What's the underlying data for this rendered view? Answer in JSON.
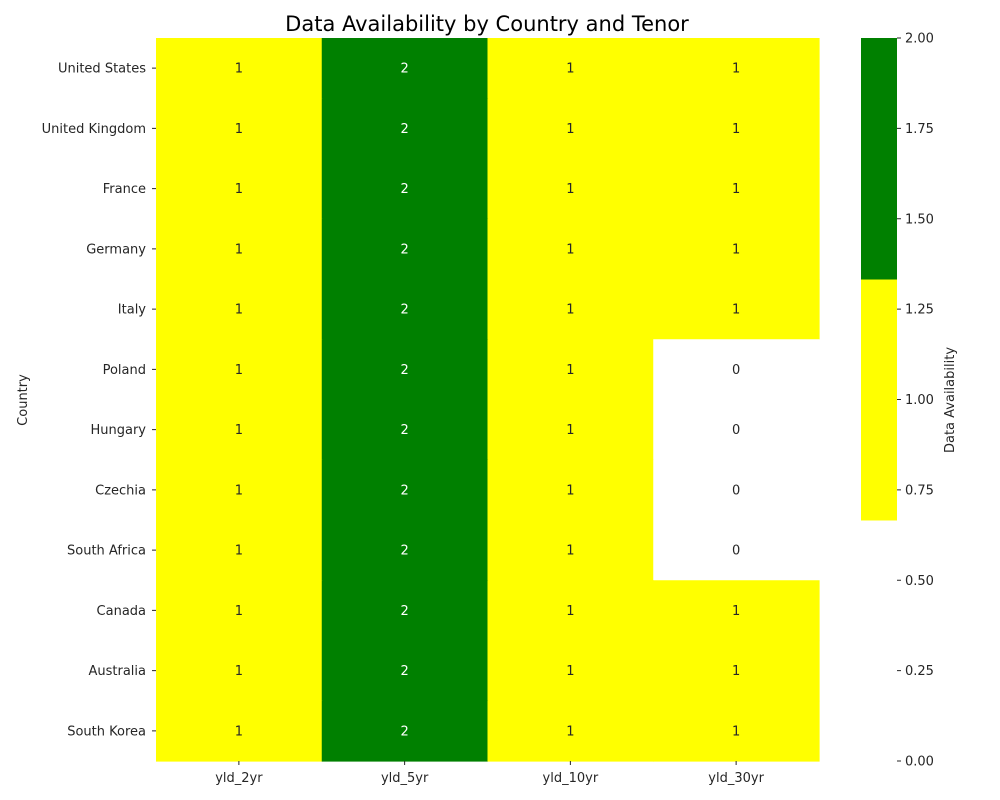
{
  "chart_data": {
    "type": "heatmap",
    "title": "Data Availability by Country and Tenor",
    "ylabel": "Country",
    "xlabel": "",
    "x_categories": [
      "yld_2yr",
      "yld_5yr",
      "yld_10yr",
      "yld_30yr"
    ],
    "y_categories": [
      "United States",
      "United Kingdom",
      "France",
      "Germany",
      "Italy",
      "Poland",
      "Hungary",
      "Czechia",
      "South Africa",
      "Canada",
      "Australia",
      "South Korea"
    ],
    "values": [
      [
        1,
        2,
        1,
        1
      ],
      [
        1,
        2,
        1,
        1
      ],
      [
        1,
        2,
        1,
        1
      ],
      [
        1,
        2,
        1,
        1
      ],
      [
        1,
        2,
        1,
        1
      ],
      [
        1,
        2,
        1,
        0
      ],
      [
        1,
        2,
        1,
        0
      ],
      [
        1,
        2,
        1,
        0
      ],
      [
        1,
        2,
        1,
        0
      ],
      [
        1,
        2,
        1,
        1
      ],
      [
        1,
        2,
        1,
        1
      ],
      [
        1,
        2,
        1,
        1
      ]
    ],
    "colormap": {
      "0": "#ffffff",
      "1": "#ffff00",
      "2": "#008000"
    },
    "annotation_colors": {
      "0": "#262626",
      "1": "#262626",
      "2": "#ffffff"
    },
    "colorbar": {
      "label": "Data Availability",
      "range": [
        0,
        2
      ],
      "ticks": [
        "0.00",
        "0.25",
        "0.50",
        "0.75",
        "1.00",
        "1.25",
        "1.50",
        "1.75",
        "2.00"
      ],
      "segments": [
        {
          "from": 0.0,
          "to": 0.6667,
          "color": "#ffffff"
        },
        {
          "from": 0.6667,
          "to": 1.3333,
          "color": "#ffff00"
        },
        {
          "from": 1.3333,
          "to": 2.0,
          "color": "#008000"
        }
      ]
    },
    "grid": false
  }
}
